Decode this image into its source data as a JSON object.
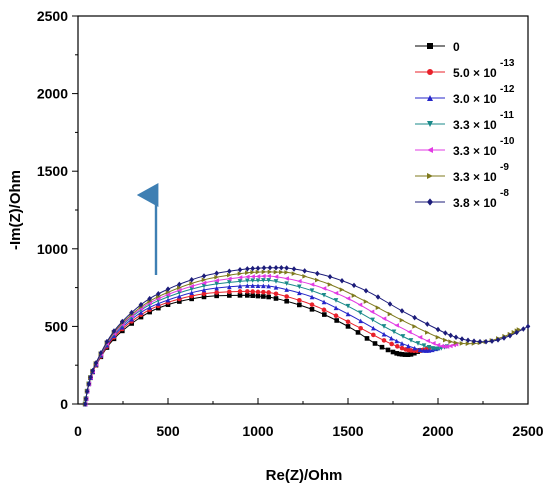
{
  "chart_data": {
    "type": "scatter",
    "xlabel": "Re(Z)/Ohm",
    "ylabel": "-Im(Z)/Ohm",
    "xlim": [
      0,
      2500
    ],
    "ylim": [
      0,
      2500
    ],
    "x_ticks": [
      "0",
      "500",
      "1000",
      "1500",
      "2000",
      "2500"
    ],
    "y_ticks": [
      "0",
      "500",
      "1000",
      "1500",
      "2000",
      "2500"
    ],
    "grid": false,
    "legend_position": "top-right",
    "annotation": "upward arrow indicating increasing concentration",
    "colors": {
      "arrow": "#3e7fb3"
    },
    "series": [
      {
        "name": "0",
        "label_base": "0",
        "label_exp": "",
        "color": "#000000",
        "marker": "square",
        "x": [
          40,
          60,
          100,
          200,
          350,
          500,
          700,
          900,
          1000,
          1100,
          1300,
          1500,
          1650,
          1750,
          1800,
          1850,
          1900
        ],
        "y": [
          0,
          130,
          250,
          420,
          560,
          640,
          690,
          700,
          695,
          680,
          610,
          500,
          390,
          335,
          320,
          320,
          345
        ]
      },
      {
        "name": "5.0 × 10^-13",
        "label_base": "5.0 × 10",
        "label_exp": "-13",
        "color": "#e8202a",
        "marker": "circle",
        "x": [
          40,
          60,
          100,
          200,
          350,
          500,
          700,
          900,
          1000,
          1100,
          1300,
          1500,
          1700,
          1800,
          1850,
          1900,
          1950
        ],
        "y": [
          0,
          130,
          250,
          430,
          575,
          655,
          710,
          725,
          722,
          710,
          640,
          530,
          410,
          360,
          345,
          345,
          360
        ]
      },
      {
        "name": "3.0 × 10^-12",
        "label_base": "3.0 × 10",
        "label_exp": "-12",
        "color": "#2626c9",
        "marker": "triangle-up",
        "x": [
          40,
          60,
          100,
          200,
          350,
          500,
          700,
          900,
          1000,
          1100,
          1300,
          1500,
          1700,
          1800,
          1900,
          1950,
          2000
        ],
        "y": [
          0,
          130,
          255,
          440,
          590,
          670,
          735,
          760,
          762,
          752,
          690,
          580,
          450,
          390,
          350,
          345,
          360
        ]
      },
      {
        "name": "3.3 × 10^-11",
        "label_base": "3.3 × 10",
        "label_exp": "-11",
        "color": "#1a8a8a",
        "marker": "triangle-down",
        "x": [
          40,
          60,
          100,
          200,
          350,
          500,
          700,
          900,
          1000,
          1100,
          1300,
          1500,
          1700,
          1850,
          1950,
          2000,
          2050
        ],
        "y": [
          0,
          130,
          258,
          450,
          605,
          690,
          760,
          790,
          795,
          790,
          730,
          630,
          500,
          410,
          365,
          355,
          370
        ]
      },
      {
        "name": "3.3 × 10^-10",
        "label_base": "3.3 × 10",
        "label_exp": "-10",
        "color": "#e23be3",
        "marker": "triangle-left",
        "x": [
          40,
          60,
          100,
          200,
          350,
          500,
          700,
          900,
          1000,
          1100,
          1300,
          1500,
          1700,
          1900,
          2000,
          2050,
          2100
        ],
        "y": [
          0,
          130,
          260,
          455,
          615,
          705,
          780,
          815,
          822,
          820,
          770,
          680,
          550,
          430,
          380,
          370,
          385
        ]
      },
      {
        "name": "3.3 × 10^-9",
        "label_base": "3.3 × 10",
        "label_exp": "-9",
        "color": "#7f7a1e",
        "marker": "triangle-right",
        "x": [
          40,
          60,
          100,
          200,
          350,
          500,
          700,
          900,
          1000,
          1100,
          1200,
          1400,
          1600,
          1800,
          2000,
          2100,
          2200,
          2300,
          2400,
          2450
        ],
        "y": [
          0,
          130,
          262,
          462,
          625,
          720,
          800,
          840,
          850,
          850,
          840,
          770,
          660,
          540,
          430,
          395,
          390,
          410,
          450,
          480
        ]
      },
      {
        "name": "3.8 × 10^-8",
        "label_base": "3.8 × 10",
        "label_exp": "-8",
        "color": "#1c1c7a",
        "marker": "diamond",
        "x": [
          40,
          60,
          100,
          200,
          350,
          500,
          700,
          900,
          1000,
          1100,
          1200,
          1400,
          1600,
          1800,
          2000,
          2100,
          2200,
          2300,
          2400,
          2500
        ],
        "y": [
          0,
          130,
          265,
          470,
          640,
          740,
          825,
          865,
          875,
          878,
          870,
          820,
          730,
          600,
          480,
          430,
          405,
          405,
          440,
          500
        ]
      }
    ]
  }
}
